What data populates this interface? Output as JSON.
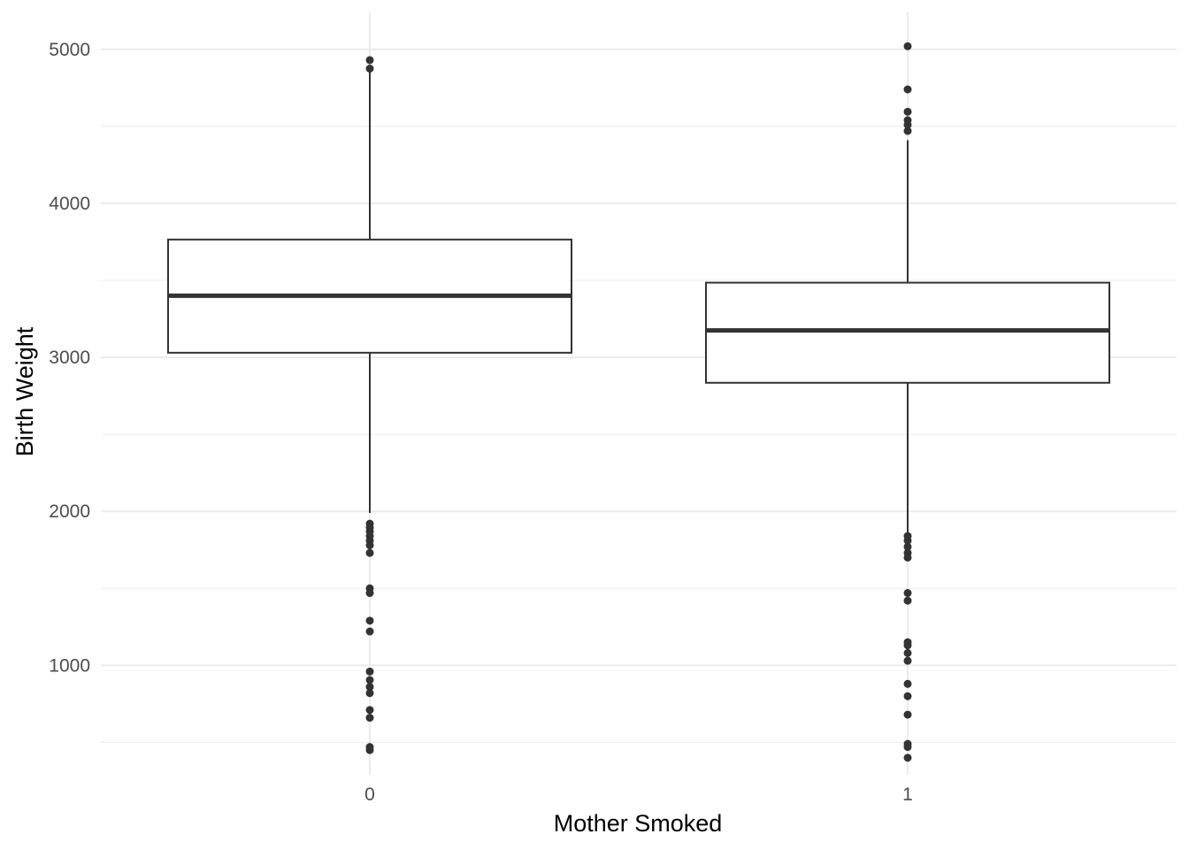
{
  "chart_data": {
    "type": "boxplot",
    "xlabel": "Mother Smoked",
    "ylabel": "Birth Weight",
    "categories": [
      "0",
      "1"
    ],
    "ylim": [
      290,
      5240
    ],
    "y_ticks": [
      1000,
      2000,
      3000,
      4000,
      5000
    ],
    "y_minor_ticks": [
      500,
      1500,
      2500,
      3500,
      4500
    ],
    "grid": true,
    "colors": {
      "box_stroke": "#333333",
      "outlier": "#333333",
      "grid": "#ebebeb",
      "tick_text": "#4d4d4d"
    },
    "boxes": [
      {
        "category": "0",
        "q1": 3030,
        "median": 3400,
        "q3": 3765,
        "whisker_low": 1990,
        "whisker_high": 4870,
        "outliers": [
          4930,
          4875,
          1920,
          1895,
          1870,
          1840,
          1810,
          1780,
          1730,
          1500,
          1470,
          1290,
          1220,
          960,
          905,
          860,
          820,
          710,
          660,
          470,
          450
        ]
      },
      {
        "category": "1",
        "q1": 2835,
        "median": 3175,
        "q3": 3485,
        "whisker_low": 1860,
        "whisker_high": 4410,
        "outliers": [
          5020,
          4740,
          4595,
          4540,
          4510,
          4470,
          1840,
          1810,
          1770,
          1730,
          1700,
          1470,
          1420,
          1150,
          1130,
          1080,
          1030,
          880,
          800,
          680,
          490,
          470,
          400
        ]
      }
    ]
  }
}
